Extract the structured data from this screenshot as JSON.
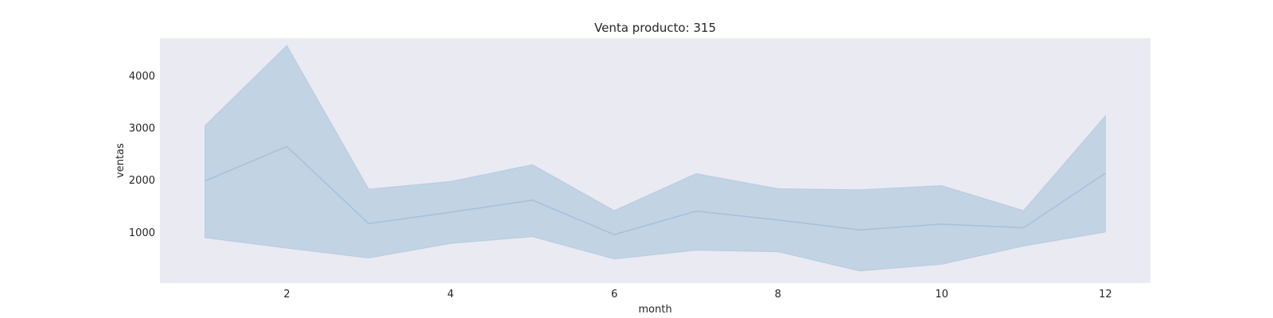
{
  "chart_data": {
    "type": "line",
    "title": "Venta producto: 315",
    "xlabel": "month",
    "ylabel": "ventas",
    "x": [
      1,
      2,
      3,
      4,
      5,
      6,
      7,
      8,
      9,
      10,
      11,
      12
    ],
    "series": [
      {
        "values": [
          1980,
          2640,
          1160,
          1380,
          1610,
          950,
          1400,
          1230,
          1040,
          1150,
          1080,
          2130
        ],
        "ci_lower": [
          890,
          690,
          500,
          780,
          910,
          480,
          650,
          620,
          250,
          380,
          730,
          1000
        ],
        "ci_upper": [
          3040,
          4580,
          1820,
          1970,
          2290,
          1410,
          2120,
          1830,
          1810,
          1890,
          1410,
          3230
        ]
      }
    ],
    "xticks": [
      2,
      4,
      6,
      8,
      10,
      12
    ],
    "yticks": [
      1000,
      2000,
      3000,
      4000
    ],
    "xlim": [
      0.45,
      12.55
    ],
    "ylim": [
      20,
      4720
    ],
    "grid": false,
    "colors": {
      "plot_background": "#eaeaf2",
      "line": "#a6c2dc",
      "band": "#c2d3e4"
    }
  }
}
